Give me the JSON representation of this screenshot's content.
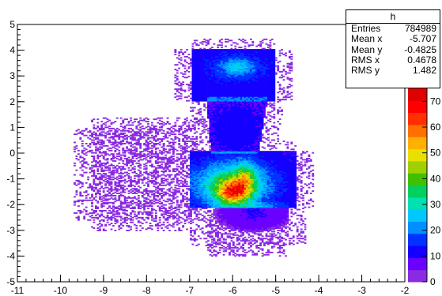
{
  "chart_data": {
    "type": "heatmap",
    "title": "",
    "xlabel": "",
    "ylabel": "",
    "xlim": [
      -11,
      -2
    ],
    "ylim": [
      -5,
      5
    ],
    "x_ticks": [
      "-11",
      "-10",
      "-9",
      "-8",
      "-7",
      "-6",
      "-5",
      "-4",
      "-3",
      "-2"
    ],
    "y_ticks": [
      "-5",
      "-4",
      "-3",
      "-2",
      "-1",
      "0",
      "1",
      "2",
      "3",
      "4",
      "5"
    ],
    "z_range": [
      0,
      75
    ],
    "z_ticks": [
      "0",
      "10",
      "20",
      "30",
      "40",
      "50",
      "60",
      "70"
    ],
    "palette": [
      "#8a2be2",
      "#6a00ff",
      "#1400ff",
      "#0033ff",
      "#0090ff",
      "#00c8ff",
      "#00e0b0",
      "#00d060",
      "#40c000",
      "#a0d000",
      "#e8e000",
      "#ffb000",
      "#ff7000",
      "#ff3000",
      "#ff0000",
      "#e00000"
    ],
    "regions": [
      {
        "label": "upper blob",
        "x_range": [
          -6.9,
          -5.0
        ],
        "y_range": [
          2.0,
          4.0
        ],
        "peak_z": 25,
        "peak_at": [
          -5.9,
          3.3
        ]
      },
      {
        "label": "neck",
        "x_range": [
          -6.6,
          -5.3
        ],
        "y_range": [
          0.0,
          2.0
        ],
        "peak_z": 12
      },
      {
        "label": "lower blob",
        "x_range": [
          -7.0,
          -4.4
        ],
        "y_range": [
          -2.0,
          0.0
        ],
        "peak_z": 72,
        "peak_at": [
          -6.0,
          -1.5
        ]
      },
      {
        "label": "bottom tail",
        "x_range": [
          -6.6,
          -4.7
        ],
        "y_range": [
          -3.5,
          -2.0
        ],
        "peak_z": 8
      },
      {
        "label": "left scatter",
        "x_range": [
          -9.2,
          -6.8
        ],
        "y_range": [
          -2.5,
          1.0
        ],
        "peak_z": 3
      }
    ]
  },
  "stats": {
    "name": "h",
    "rows": [
      {
        "label": "Entries",
        "value": "784989"
      },
      {
        "label": "Mean x",
        "value": "-5.707"
      },
      {
        "label": "Mean y",
        "value": "-0.4825"
      },
      {
        "label": "RMS x",
        "value": "0.4678"
      },
      {
        "label": "RMS y",
        "value": "1.482"
      }
    ]
  }
}
